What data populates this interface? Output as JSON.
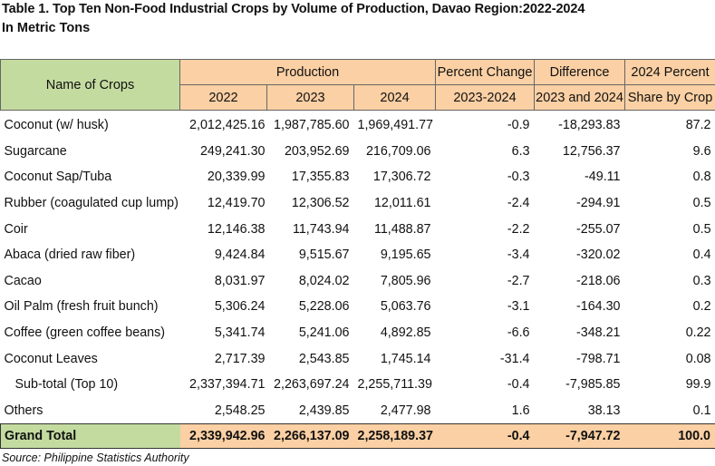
{
  "title": "Table 1. Top Ten Non-Food Industrial Crops by Volume of Production, Davao Region:2022-2024",
  "subtitle": "In Metric Tons",
  "headers": {
    "name": "Name of Crops",
    "production": "Production",
    "y2022": "2022",
    "y2023": "2023",
    "y2024": "2024",
    "pct_change": "Percent Change",
    "pct_change_sub": "2023-2024",
    "difference": "Difference",
    "difference_sub": "2023 and 2024",
    "share": "2024 Percent",
    "share_sub": "Share by Crop"
  },
  "rows": [
    {
      "name": "Coconut (w/ husk)",
      "y2022": "2,012,425.16",
      "y2023": "1,987,785.60",
      "y2024": "1,969,491.77",
      "pct": "-0.9",
      "diff": "-18,293.83",
      "share": "87.2"
    },
    {
      "name": "Sugarcane",
      "y2022": "249,241.30",
      "y2023": "203,952.69",
      "y2024": "216,709.06",
      "pct": "6.3",
      "diff": "12,756.37",
      "share": "9.6"
    },
    {
      "name": "Coconut Sap/Tuba",
      "y2022": "20,339.99",
      "y2023": "17,355.83",
      "y2024": "17,306.72",
      "pct": "-0.3",
      "diff": "-49.11",
      "share": "0.8"
    },
    {
      "name": "Rubber (coagulated cup lump)",
      "y2022": "12,419.70",
      "y2023": "12,306.52",
      "y2024": "12,011.61",
      "pct": "-2.4",
      "diff": "-294.91",
      "share": "0.5"
    },
    {
      "name": "Coir",
      "y2022": "12,146.38",
      "y2023": "11,743.94",
      "y2024": "11,488.87",
      "pct": "-2.2",
      "diff": "-255.07",
      "share": "0.5"
    },
    {
      "name": "Abaca (dried raw fiber)",
      "y2022": "9,424.84",
      "y2023": "9,515.67",
      "y2024": "9,195.65",
      "pct": "-3.4",
      "diff": "-320.02",
      "share": "0.4"
    },
    {
      "name": "Cacao",
      "y2022": "8,031.97",
      "y2023": "8,024.02",
      "y2024": "7,805.96",
      "pct": "-2.7",
      "diff": "-218.06",
      "share": "0.3"
    },
    {
      "name": "Oil Palm (fresh fruit bunch)",
      "y2022": "5,306.24",
      "y2023": "5,228.06",
      "y2024": "5,063.76",
      "pct": "-3.1",
      "diff": "-164.30",
      "share": "0.2"
    },
    {
      "name": "Coffee (green coffee beans)",
      "y2022": "5,341.74",
      "y2023": "5,241.06",
      "y2024": "4,892.85",
      "pct": "-6.6",
      "diff": "-348.21",
      "share": "0.22"
    },
    {
      "name": "Coconut Leaves",
      "y2022": "2,717.39",
      "y2023": "2,543.85",
      "y2024": "1,745.14",
      "pct": "-31.4",
      "diff": "-798.71",
      "share": "0.08"
    },
    {
      "name": "Sub-total (Top 10)",
      "y2022": "2,337,394.71",
      "y2023": "2,263,697.24",
      "y2024": "2,255,711.39",
      "pct": "-0.4",
      "diff": "-7,985.85",
      "share": "99.9"
    },
    {
      "name": "Others",
      "y2022": "2,548.25",
      "y2023": "2,439.85",
      "y2024": "2,477.98",
      "pct": "1.6",
      "diff": "38.13",
      "share": "0.1"
    }
  ],
  "grand_total": {
    "name": "Grand Total",
    "y2022": "2,339,942.96",
    "y2023": "2,266,137.09",
    "y2024": "2,258,189.37",
    "pct": "-0.4",
    "diff": "-7,947.72",
    "share": "100.0"
  },
  "source": "Source: Philippine Statistics Authority"
}
